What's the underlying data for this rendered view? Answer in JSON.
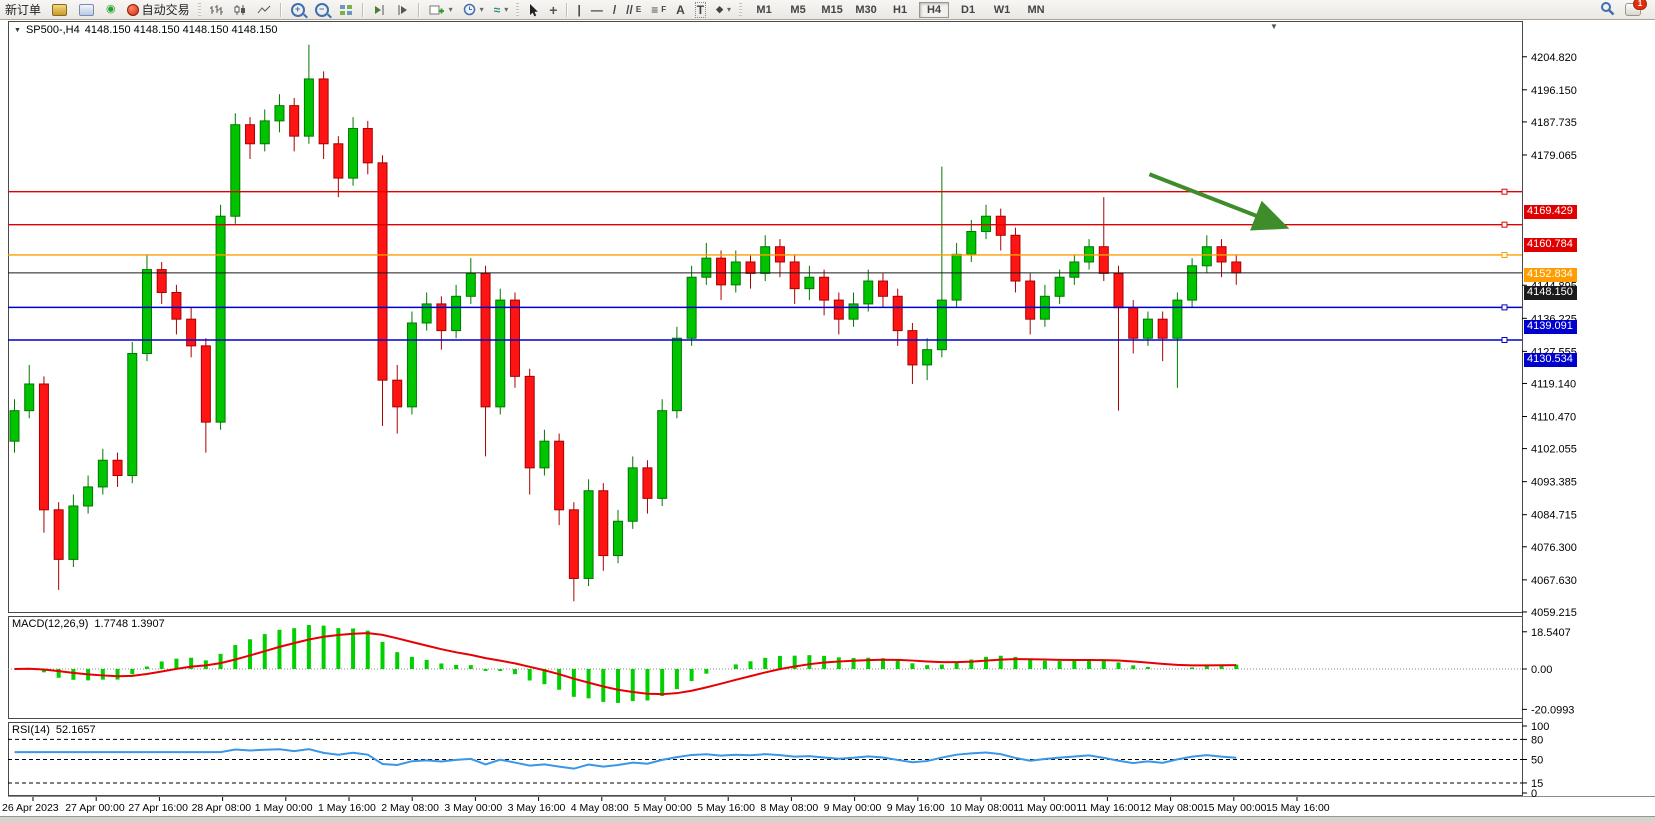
{
  "toolbar": {
    "new_order_label": "新订单",
    "auto_trading_label": "自动交易",
    "timeframes": [
      "M1",
      "M5",
      "M15",
      "M30",
      "H1",
      "H4",
      "D1",
      "W1",
      "MN"
    ],
    "active_timeframe": "H4",
    "notification_count": "1"
  },
  "icons": {
    "title_caret": "▼",
    "shift_marker": "▼",
    "dropdown_caret": "▾",
    "signal": "◉",
    "zoom_in": "+",
    "zoom_out": "−",
    "crosshair": "+",
    "vline": "|",
    "hline": "—",
    "trendline": "/",
    "channel": "//",
    "channel_sub": "E",
    "fibo": "≡",
    "fibo_sub": "F",
    "text_tool": "A",
    "label_tool": "T",
    "shapes_tool": "◆",
    "template": "≈"
  },
  "chart": {
    "title_symbol": "SP500-,H4",
    "title_ohlc": "4148.150 4148.150 4148.150 4148.150"
  },
  "chart_data": {
    "type": "candlestick",
    "title": "SP500-,H4",
    "symbol": "SP500-",
    "timeframe": "H4",
    "ohlc_display": "4148.150 4148.150 4148.150 4148.150",
    "price_range": [
      4059.2,
      4214.2
    ],
    "price_axis_ticks": [
      "4204.820",
      "4196.150",
      "4187.735",
      "4179.065",
      "4144.895",
      "4136.225",
      "4127.555",
      "4119.140",
      "4110.470",
      "4102.055",
      "4093.385",
      "4084.715",
      "4076.300",
      "4067.630",
      "4059.215"
    ],
    "time_axis": [
      "26 Apr 2023",
      "27 Apr 00:00",
      "27 Apr 16:00",
      "28 Apr 08:00",
      "1 May 00:00",
      "1 May 16:00",
      "2 May 08:00",
      "3 May 00:00",
      "3 May 16:00",
      "4 May 08:00",
      "5 May 00:00",
      "5 May 16:00",
      "8 May 08:00",
      "9 May 00:00",
      "9 May 16:00",
      "10 May 08:00",
      "11 May 00:00",
      "11 May 16:00",
      "12 May 08:00",
      "15 May 00:00",
      "15 May 16:00"
    ],
    "up_color": "#00c400",
    "down_color": "#ff1414",
    "candles": [
      [
        4104,
        4115,
        4101,
        4112
      ],
      [
        4112,
        4124,
        4110,
        4119
      ],
      [
        4119,
        4121,
        4080,
        4086
      ],
      [
        4086,
        4088,
        4065,
        4073
      ],
      [
        4073,
        4090,
        4071,
        4087
      ],
      [
        4087,
        4095,
        4085,
        4092
      ],
      [
        4092,
        4102,
        4090,
        4099
      ],
      [
        4099,
        4101,
        4092,
        4095
      ],
      [
        4095,
        4130,
        4093,
        4127
      ],
      [
        4127,
        4153,
        4125,
        4149
      ],
      [
        4149,
        4151,
        4140,
        4143
      ],
      [
        4143,
        4145,
        4132,
        4136
      ],
      [
        4136,
        4139,
        4126,
        4129
      ],
      [
        4129,
        4131,
        4101,
        4109
      ],
      [
        4109,
        4166,
        4107,
        4163
      ],
      [
        4163,
        4190,
        4161,
        4187
      ],
      [
        4187,
        4189,
        4178,
        4182
      ],
      [
        4182,
        4191,
        4180,
        4188
      ],
      [
        4188,
        4195,
        4185,
        4192
      ],
      [
        4192,
        4194,
        4180,
        4184
      ],
      [
        4184,
        4208,
        4182,
        4199
      ],
      [
        4199,
        4201,
        4178,
        4182
      ],
      [
        4182,
        4184,
        4168,
        4173
      ],
      [
        4173,
        4189,
        4171,
        4186
      ],
      [
        4186,
        4188,
        4174,
        4177
      ],
      [
        4177,
        4179,
        4108,
        4120
      ],
      [
        4120,
        4124,
        4106,
        4113
      ],
      [
        4113,
        4138,
        4111,
        4135
      ],
      [
        4135,
        4143,
        4133,
        4140
      ],
      [
        4140,
        4142,
        4128,
        4133
      ],
      [
        4133,
        4145,
        4131,
        4142
      ],
      [
        4142,
        4152,
        4140,
        4148
      ],
      [
        4148,
        4150,
        4100,
        4113
      ],
      [
        4113,
        4144,
        4111,
        4141
      ],
      [
        4141,
        4143,
        4118,
        4121
      ],
      [
        4121,
        4123,
        4090,
        4097
      ],
      [
        4097,
        4107,
        4095,
        4104
      ],
      [
        4104,
        4106,
        4082,
        4086
      ],
      [
        4086,
        4088,
        4062,
        4068
      ],
      [
        4068,
        4094,
        4066,
        4091
      ],
      [
        4091,
        4093,
        4070,
        4074
      ],
      [
        4074,
        4086,
        4072,
        4083
      ],
      [
        4083,
        4100,
        4081,
        4097
      ],
      [
        4097,
        4099,
        4085,
        4089
      ],
      [
        4089,
        4115,
        4087,
        4112
      ],
      [
        4112,
        4134,
        4110,
        4131
      ],
      [
        4131,
        4150,
        4129,
        4147
      ],
      [
        4147,
        4156,
        4145,
        4152
      ],
      [
        4152,
        4154,
        4141,
        4145
      ],
      [
        4145,
        4154,
        4143,
        4151
      ],
      [
        4151,
        4153,
        4144,
        4148
      ],
      [
        4148,
        4158,
        4146,
        4155
      ],
      [
        4155,
        4157,
        4147,
        4151
      ],
      [
        4151,
        4153,
        4140,
        4144
      ],
      [
        4144,
        4150,
        4141,
        4147
      ],
      [
        4147,
        4149,
        4137,
        4141
      ],
      [
        4141,
        4143,
        4132,
        4136
      ],
      [
        4136,
        4143,
        4134,
        4140
      ],
      [
        4140,
        4149,
        4138,
        4146
      ],
      [
        4146,
        4148,
        4139,
        4142
      ],
      [
        4142,
        4144,
        4129,
        4133
      ],
      [
        4133,
        4135,
        4119,
        4124
      ],
      [
        4124,
        4131,
        4120,
        4128
      ],
      [
        4128,
        4176,
        4126,
        4141
      ],
      [
        4141,
        4156,
        4139,
        4153
      ],
      [
        4153,
        4162,
        4151,
        4159
      ],
      [
        4159,
        4166,
        4157,
        4163
      ],
      [
        4163,
        4165,
        4154,
        4158
      ],
      [
        4158,
        4160,
        4143,
        4146
      ],
      [
        4146,
        4148,
        4132,
        4136
      ],
      [
        4136,
        4145,
        4134,
        4142
      ],
      [
        4142,
        4149,
        4140,
        4147
      ],
      [
        4147,
        4153,
        4145,
        4151
      ],
      [
        4151,
        4157,
        4149,
        4155
      ],
      [
        4155,
        4168,
        4146,
        4148
      ],
      [
        4148,
        4150,
        4112,
        4139
      ],
      [
        4139,
        4141,
        4127,
        4131
      ],
      [
        4131,
        4138,
        4129,
        4136
      ],
      [
        4136,
        4138,
        4125,
        4131
      ],
      [
        4131,
        4143,
        4118,
        4141
      ],
      [
        4141,
        4152,
        4139,
        4150
      ],
      [
        4150,
        4158,
        4148,
        4155
      ],
      [
        4155,
        4157,
        4147,
        4151
      ],
      [
        4151,
        4153,
        4145,
        4148.15
      ]
    ],
    "levels": [
      {
        "price": 4169.429,
        "label": "4169.429",
        "color": "#e00000",
        "kind": "resistance-line"
      },
      {
        "price": 4160.784,
        "label": "4160.784",
        "color": "#e00000",
        "kind": "resistance-line"
      },
      {
        "price": 4152.834,
        "label": "4152.834",
        "color": "#ff9d00",
        "kind": "pivot-line"
      },
      {
        "price": 4148.15,
        "label": "4148.150",
        "color": "#1a1a1a",
        "kind": "current-price",
        "current": true
      },
      {
        "price": 4139.091,
        "label": "4139.091",
        "color": "#0000cc",
        "kind": "support-line"
      },
      {
        "price": 4130.534,
        "label": "4130.534",
        "color": "#0000cc",
        "kind": "support-line"
      }
    ],
    "arrow_annotation": {
      "bar_from": 77.1,
      "price_from": 4174.0,
      "bar_to": 86.1,
      "price_to": 4160.5,
      "color": "#3f8c2a"
    },
    "macd": {
      "label": "MACD(12,26,9)",
      "values_text": "1.7748 1.3907",
      "params": [
        12,
        26,
        9
      ],
      "axis_ticks": [
        "18.5407",
        "0.00",
        "-20.0993"
      ],
      "range": [
        -24.4,
        25.9
      ],
      "histogram_color": "#00d000",
      "signal_color": "#e80000"
    },
    "rsi": {
      "label": "RSI(14)",
      "period": 14,
      "value_text": "52.1657",
      "levels": [
        80,
        50,
        15
      ],
      "axis_ticks": [
        "100",
        "80",
        "50",
        "15",
        "0"
      ],
      "range": [
        0,
        100
      ],
      "color": "#3a96e8"
    }
  }
}
